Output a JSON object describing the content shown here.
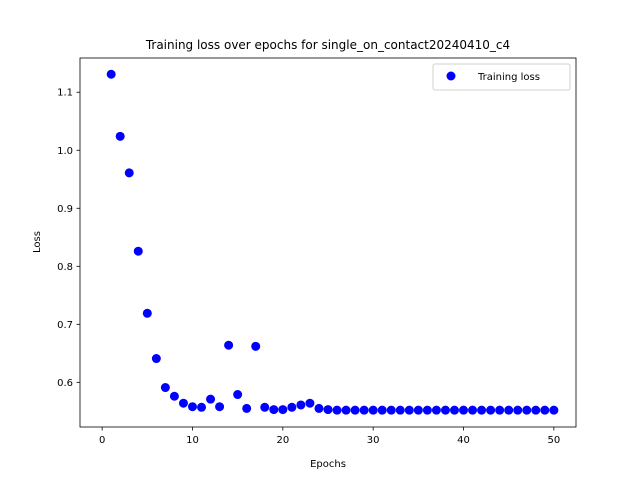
{
  "chart_data": {
    "type": "scatter",
    "title": "Training loss over epochs for single_on_contact20240410_c4",
    "xlabel": "Epochs",
    "ylabel": "Loss",
    "xlim": [
      -2.45,
      52.45
    ],
    "ylim": [
      0.523,
      1.159
    ],
    "xticks": [
      0,
      10,
      20,
      30,
      40,
      50
    ],
    "yticks": [
      0.6,
      0.7,
      0.8,
      0.9,
      1.0,
      1.1
    ],
    "ytick_labels": [
      "0.6",
      "0.7",
      "0.8",
      "0.9",
      "1.0",
      "1.1"
    ],
    "grid": false,
    "legend_position": "top-right",
    "series": [
      {
        "name": "Training loss",
        "color": "#0000ff",
        "marker": "circle",
        "x": [
          1,
          2,
          3,
          4,
          5,
          6,
          7,
          8,
          9,
          10,
          11,
          12,
          13,
          14,
          15,
          16,
          17,
          18,
          19,
          20,
          21,
          22,
          23,
          24,
          25,
          26,
          27,
          28,
          29,
          30,
          31,
          32,
          33,
          34,
          35,
          36,
          37,
          38,
          39,
          40,
          41,
          42,
          43,
          44,
          45,
          46,
          47,
          48,
          49,
          50
        ],
        "y": [
          1.131,
          1.024,
          0.961,
          0.826,
          0.719,
          0.641,
          0.591,
          0.576,
          0.564,
          0.558,
          0.557,
          0.571,
          0.558,
          0.664,
          0.579,
          0.555,
          0.662,
          0.557,
          0.553,
          0.553,
          0.557,
          0.561,
          0.564,
          0.555,
          0.553,
          0.552,
          0.552,
          0.552,
          0.552,
          0.552,
          0.552,
          0.552,
          0.552,
          0.552,
          0.552,
          0.552,
          0.552,
          0.552,
          0.552,
          0.552,
          0.552,
          0.552,
          0.552,
          0.552,
          0.552,
          0.552,
          0.552,
          0.552,
          0.552,
          0.552
        ]
      }
    ]
  }
}
